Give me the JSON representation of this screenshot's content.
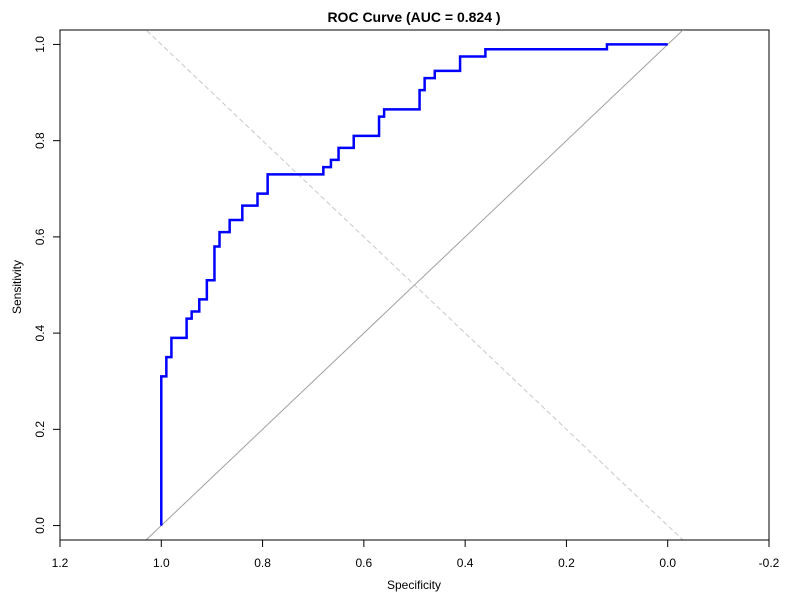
{
  "chart_data": {
    "type": "line",
    "title": "ROC Curve (AUC = 0.824 )",
    "xlabel": "Specificity",
    "ylabel": "Sensitivity",
    "x_reversed": true,
    "xlim": [
      1.2,
      -0.2
    ],
    "ylim": [
      -0.03,
      1.03
    ],
    "x_ticks": [
      1.2,
      1.0,
      0.8,
      0.6,
      0.4,
      0.2,
      0.0,
      -0.2
    ],
    "x_tick_labels": [
      "1.2",
      "1.0",
      "0.8",
      "0.6",
      "0.4",
      "0.2",
      "0.0",
      "-0.2"
    ],
    "y_ticks": [
      0.0,
      0.2,
      0.4,
      0.6,
      0.8,
      1.0
    ],
    "y_tick_labels": [
      "0.0",
      "0.2",
      "0.4",
      "0.6",
      "0.8",
      "1.0"
    ],
    "grid": false,
    "legend": "none",
    "series": [
      {
        "color": "#0000ff",
        "style": "step",
        "x": [
          1.0,
          1.0,
          0.99,
          0.99,
          0.98,
          0.98,
          0.97,
          0.97,
          0.95,
          0.95,
          0.94,
          0.94,
          0.925,
          0.925,
          0.91,
          0.91,
          0.895,
          0.895,
          0.885,
          0.885,
          0.865,
          0.865,
          0.84,
          0.84,
          0.81,
          0.81,
          0.79,
          0.79,
          0.78,
          0.78,
          0.68,
          0.68,
          0.665,
          0.665,
          0.65,
          0.65,
          0.62,
          0.62,
          0.58,
          0.58,
          0.57,
          0.57,
          0.56,
          0.56,
          0.49,
          0.49,
          0.48,
          0.48,
          0.46,
          0.46,
          0.41,
          0.41,
          0.36,
          0.36,
          0.12,
          0.12,
          0.0
        ],
        "y": [
          0.0,
          0.31,
          0.31,
          0.35,
          0.35,
          0.39,
          0.39,
          0.39,
          0.39,
          0.43,
          0.43,
          0.445,
          0.445,
          0.47,
          0.47,
          0.51,
          0.51,
          0.58,
          0.58,
          0.61,
          0.61,
          0.635,
          0.635,
          0.665,
          0.665,
          0.69,
          0.69,
          0.73,
          0.73,
          0.73,
          0.73,
          0.745,
          0.745,
          0.76,
          0.76,
          0.785,
          0.785,
          0.81,
          0.81,
          0.81,
          0.81,
          0.85,
          0.85,
          0.865,
          0.865,
          0.905,
          0.905,
          0.93,
          0.93,
          0.945,
          0.945,
          0.975,
          0.975,
          0.99,
          0.99,
          1.0,
          1.0
        ]
      },
      {
        "color": "#a0a0a0",
        "style": "line",
        "x": [
          1.04,
          -0.04
        ],
        "y": [
          -0.04,
          1.04
        ]
      },
      {
        "color": "#c8c8c8",
        "style": "dashed",
        "x": [
          1.04,
          -0.04
        ],
        "y": [
          1.04,
          -0.04
        ]
      }
    ]
  }
}
